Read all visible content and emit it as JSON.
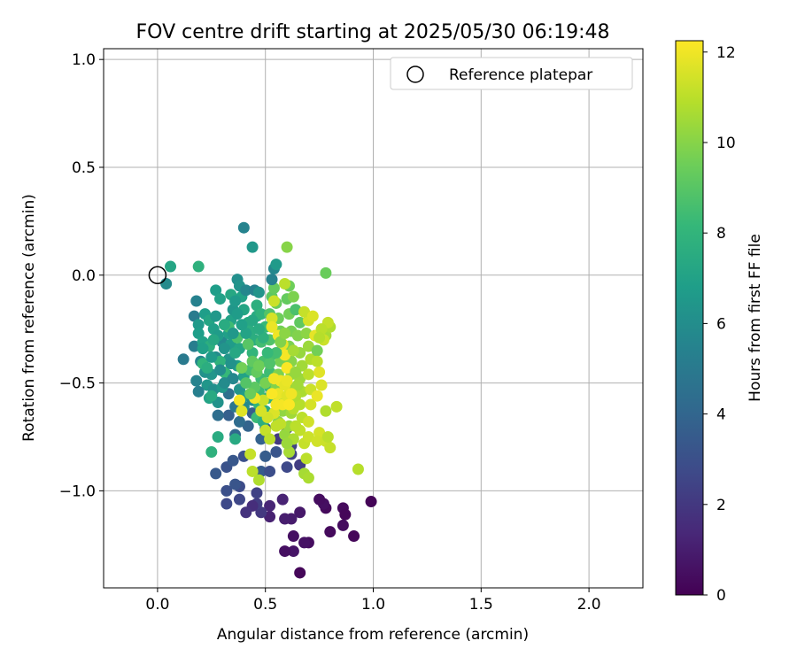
{
  "chart_data": {
    "type": "scatter",
    "title": "FOV centre drift starting at 2025/05/30 06:19:48",
    "xlabel": "Angular distance from reference (arcmin)",
    "ylabel": "Rotation from reference (arcmin)",
    "xlim": [
      -0.25,
      2.25
    ],
    "ylim": [
      -1.45,
      1.05
    ],
    "xticks": [
      0.0,
      0.5,
      1.0,
      1.5,
      2.0
    ],
    "xtick_labels": [
      "0.0",
      "0.5",
      "1.0",
      "1.5",
      "2.0"
    ],
    "yticks": [
      -1.0,
      -0.5,
      0.0,
      0.5,
      1.0
    ],
    "ytick_labels": [
      "−1.0",
      "−0.5",
      "0.0",
      "0.5",
      "1.0"
    ],
    "grid": true,
    "legend": {
      "placement": "top-right",
      "entries": [
        "Reference platepar"
      ]
    },
    "reference_point": {
      "x": 0.0,
      "y": 0.0,
      "label": "Reference platepar",
      "marker": "open-circle"
    },
    "colorbar": {
      "label": "Hours from first FF file",
      "range": [
        0,
        12.25
      ],
      "ticks": [
        0,
        2,
        4,
        6,
        8,
        10,
        12
      ],
      "tick_labels": [
        "0",
        "2",
        "4",
        "6",
        "8",
        "10",
        "12"
      ],
      "colormap": "viridis"
    },
    "colormap_stops": [
      "#440154",
      "#482878",
      "#3e4a89",
      "#31688e",
      "#26828e",
      "#1f9e89",
      "#35b779",
      "#6ece58",
      "#b5de2b",
      "#fde725"
    ],
    "points": [
      [
        0.99,
        -1.05,
        0.1
      ],
      [
        0.91,
        -1.21,
        0.2
      ],
      [
        0.86,
        -1.08,
        0.3
      ],
      [
        0.87,
        -1.11,
        0.2
      ],
      [
        0.86,
        -1.16,
        0.4
      ],
      [
        0.8,
        -1.19,
        0.3
      ],
      [
        0.78,
        -1.08,
        0.3
      ],
      [
        0.77,
        -1.06,
        0.5
      ],
      [
        0.75,
        -1.04,
        0.4
      ],
      [
        0.66,
        -1.38,
        0.2
      ],
      [
        0.7,
        -1.24,
        0.4
      ],
      [
        0.68,
        -1.24,
        0.6
      ],
      [
        0.63,
        -1.21,
        0.5
      ],
      [
        0.63,
        -1.28,
        0.7
      ],
      [
        0.59,
        -1.28,
        0.5
      ],
      [
        0.66,
        -1.1,
        0.8
      ],
      [
        0.62,
        -1.13,
        0.9
      ],
      [
        0.59,
        -1.13,
        1.0
      ],
      [
        0.52,
        -1.12,
        1.1
      ],
      [
        0.58,
        -1.04,
        1.2
      ],
      [
        0.52,
        -1.07,
        1.3
      ],
      [
        0.48,
        -1.1,
        2.0
      ],
      [
        0.46,
        -1.06,
        2.2
      ],
      [
        0.44,
        -1.07,
        1.6
      ],
      [
        0.46,
        -1.01,
        2.4
      ],
      [
        0.41,
        -1.1,
        1.8
      ],
      [
        0.38,
        -1.04,
        2.6
      ],
      [
        0.38,
        -0.98,
        2.8
      ],
      [
        0.32,
        -1.06,
        2.7
      ],
      [
        0.32,
        -1.0,
        3.0
      ],
      [
        0.36,
        -0.97,
        3.2
      ],
      [
        0.27,
        -0.92,
        3.4
      ],
      [
        0.32,
        -0.89,
        3.1
      ],
      [
        0.35,
        -0.86,
        3.3
      ],
      [
        0.4,
        -0.84,
        3.0
      ],
      [
        0.48,
        -0.91,
        3.5
      ],
      [
        0.5,
        -0.84,
        3.6
      ],
      [
        0.52,
        -0.91,
        2.9
      ],
      [
        0.55,
        -0.82,
        3.2
      ],
      [
        0.6,
        -0.89,
        2.7
      ],
      [
        0.62,
        -0.83,
        2.5
      ],
      [
        0.66,
        -0.88,
        2.2
      ],
      [
        0.62,
        -0.79,
        2.4
      ],
      [
        0.56,
        -0.76,
        2.1
      ],
      [
        0.6,
        -0.71,
        2.0
      ],
      [
        0.48,
        -0.76,
        3.8
      ],
      [
        0.5,
        -0.71,
        3.4
      ],
      [
        0.44,
        -0.64,
        3.6
      ],
      [
        0.42,
        -0.7,
        3.9
      ],
      [
        0.38,
        -0.68,
        4.3
      ],
      [
        0.36,
        -0.74,
        4.1
      ],
      [
        0.33,
        -0.65,
        3.7
      ],
      [
        0.28,
        -0.65,
        4.4
      ],
      [
        0.33,
        -0.55,
        4.5
      ],
      [
        0.36,
        -0.61,
        4.8
      ],
      [
        0.36,
        -0.76,
        7.4
      ],
      [
        0.28,
        -0.75,
        7.5
      ],
      [
        0.25,
        -0.82,
        7.8
      ],
      [
        0.24,
        -0.57,
        7.1
      ],
      [
        0.23,
        -0.51,
        6.4
      ],
      [
        0.19,
        -0.54,
        5.3
      ],
      [
        0.18,
        -0.49,
        5.5
      ],
      [
        0.2,
        -0.4,
        5.6
      ],
      [
        0.17,
        -0.33,
        5.2
      ],
      [
        0.12,
        -0.39,
        5.0
      ],
      [
        0.17,
        -0.19,
        5.1
      ],
      [
        0.18,
        -0.12,
        5.4
      ],
      [
        0.19,
        -0.23,
        6.6
      ],
      [
        0.19,
        -0.27,
        6.8
      ],
      [
        0.21,
        -0.31,
        7.0
      ],
      [
        0.22,
        -0.18,
        6.8
      ],
      [
        0.24,
        -0.21,
        7.2
      ],
      [
        0.26,
        -0.25,
        6.9
      ],
      [
        0.27,
        -0.07,
        6.8
      ],
      [
        0.29,
        -0.11,
        7.0
      ],
      [
        0.27,
        -0.19,
        6.5
      ],
      [
        0.3,
        -0.31,
        5.8
      ],
      [
        0.27,
        -0.38,
        5.9
      ],
      [
        0.25,
        -0.46,
        6.4
      ],
      [
        0.22,
        -0.45,
        6.2
      ],
      [
        0.21,
        -0.41,
        8.0
      ],
      [
        0.24,
        -0.33,
        7.7
      ],
      [
        0.26,
        -0.53,
        6.1
      ],
      [
        0.28,
        -0.59,
        6.2
      ],
      [
        0.3,
        -0.52,
        6.5
      ],
      [
        0.32,
        -0.46,
        6.0
      ],
      [
        0.33,
        -0.39,
        6.3
      ],
      [
        0.34,
        -0.32,
        6.7
      ],
      [
        0.33,
        -0.27,
        6.9
      ],
      [
        0.34,
        -0.21,
        7.0
      ],
      [
        0.35,
        -0.16,
        6.4
      ],
      [
        0.34,
        -0.09,
        7.3
      ],
      [
        0.37,
        -0.02,
        6.1
      ],
      [
        0.38,
        -0.05,
        6.3
      ],
      [
        0.39,
        -0.1,
        7.0
      ],
      [
        0.36,
        -0.12,
        6.6
      ],
      [
        0.4,
        -0.16,
        7.2
      ],
      [
        0.42,
        -0.22,
        7.4
      ],
      [
        0.41,
        -0.07,
        5.7
      ],
      [
        0.38,
        -0.34,
        7.2
      ],
      [
        0.37,
        -0.42,
        6.8
      ],
      [
        0.4,
        -0.47,
        7.0
      ],
      [
        0.38,
        -0.53,
        6.3
      ],
      [
        0.41,
        -0.56,
        6.7
      ],
      [
        0.4,
        -0.61,
        5.8
      ],
      [
        0.44,
        -0.58,
        5.9
      ],
      [
        0.43,
        -0.44,
        8.6
      ],
      [
        0.44,
        -0.36,
        8.0
      ],
      [
        0.45,
        -0.3,
        7.6
      ],
      [
        0.43,
        -0.26,
        7.6
      ],
      [
        0.46,
        -0.19,
        7.5
      ],
      [
        0.46,
        -0.14,
        7.7
      ],
      [
        0.45,
        -0.07,
        5.4
      ],
      [
        0.47,
        -0.08,
        6.3
      ],
      [
        0.48,
        -0.18,
        7.9
      ],
      [
        0.5,
        -0.24,
        8.2
      ],
      [
        0.48,
        -0.31,
        8.5
      ],
      [
        0.49,
        -0.4,
        8.6
      ],
      [
        0.48,
        -0.48,
        8.4
      ],
      [
        0.47,
        -0.54,
        8.3
      ],
      [
        0.47,
        -0.6,
        8.0
      ],
      [
        0.46,
        -0.66,
        8.3
      ],
      [
        0.49,
        -0.68,
        7.6
      ],
      [
        0.5,
        -0.63,
        7.4
      ],
      [
        0.51,
        -0.57,
        7.9
      ],
      [
        0.52,
        -0.52,
        8.1
      ],
      [
        0.52,
        -0.45,
        8.4
      ],
      [
        0.53,
        -0.37,
        8.6
      ],
      [
        0.52,
        -0.3,
        8.8
      ],
      [
        0.53,
        -0.24,
        9.0
      ],
      [
        0.52,
        -0.18,
        8.9
      ],
      [
        0.53,
        -0.1,
        9.1
      ],
      [
        0.54,
        -0.06,
        9.3
      ],
      [
        0.53,
        -0.02,
        5.4
      ],
      [
        0.54,
        0.03,
        5.7
      ],
      [
        0.55,
        -0.13,
        9.4
      ],
      [
        0.56,
        -0.2,
        9.5
      ],
      [
        0.57,
        -0.26,
        9.6
      ],
      [
        0.58,
        -0.33,
        9.4
      ],
      [
        0.57,
        -0.4,
        9.7
      ],
      [
        0.56,
        -0.46,
        9.8
      ],
      [
        0.55,
        -0.52,
        9.9
      ],
      [
        0.56,
        -0.58,
        10.0
      ],
      [
        0.58,
        -0.63,
        10.2
      ],
      [
        0.56,
        -0.68,
        10.1
      ],
      [
        0.59,
        -0.74,
        10.3
      ],
      [
        0.61,
        -0.7,
        10.4
      ],
      [
        0.62,
        -0.64,
        10.5
      ],
      [
        0.63,
        -0.58,
        10.6
      ],
      [
        0.61,
        -0.52,
        10.4
      ],
      [
        0.62,
        -0.46,
        10.2
      ],
      [
        0.62,
        -0.4,
        10.0
      ],
      [
        0.61,
        -0.33,
        9.8
      ],
      [
        0.62,
        -0.26,
        9.7
      ],
      [
        0.61,
        -0.18,
        9.6
      ],
      [
        0.6,
        -0.11,
        9.3
      ],
      [
        0.61,
        -0.05,
        9.5
      ],
      [
        0.63,
        -0.1,
        9.8
      ],
      [
        0.64,
        -0.16,
        8.7
      ],
      [
        0.66,
        -0.22,
        9.2
      ],
      [
        0.65,
        -0.28,
        9.9
      ],
      [
        0.66,
        -0.36,
        10.3
      ],
      [
        0.67,
        -0.42,
        10.5
      ],
      [
        0.66,
        -0.48,
        10.4
      ],
      [
        0.67,
        -0.54,
        10.7
      ],
      [
        0.66,
        -0.6,
        10.9
      ],
      [
        0.67,
        -0.66,
        11.0
      ],
      [
        0.66,
        -0.72,
        11.1
      ],
      [
        0.68,
        -0.78,
        11.2
      ],
      [
        0.69,
        -0.85,
        11.0
      ],
      [
        0.68,
        -0.92,
        10.6
      ],
      [
        0.7,
        -0.94,
        10.7
      ],
      [
        0.7,
        -0.75,
        11.3
      ],
      [
        0.7,
        -0.68,
        11.4
      ],
      [
        0.71,
        -0.6,
        11.5
      ],
      [
        0.71,
        -0.53,
        11.3
      ],
      [
        0.7,
        -0.46,
        11.0
      ],
      [
        0.71,
        -0.39,
        10.8
      ],
      [
        0.7,
        -0.33,
        10.4
      ],
      [
        0.69,
        -0.27,
        10.1
      ],
      [
        0.7,
        -0.21,
        11.5
      ],
      [
        0.68,
        -0.17,
        11.2
      ],
      [
        0.72,
        -0.19,
        11.6
      ],
      [
        0.73,
        -0.28,
        11.8
      ],
      [
        0.74,
        -0.35,
        9.6
      ],
      [
        0.74,
        -0.4,
        11.0
      ],
      [
        0.75,
        -0.45,
        11.7
      ],
      [
        0.76,
        -0.51,
        11.6
      ],
      [
        0.74,
        -0.56,
        11.9
      ],
      [
        0.75,
        -0.73,
        11.5
      ],
      [
        0.74,
        -0.77,
        11.4
      ],
      [
        0.78,
        -0.77,
        11.3
      ],
      [
        0.8,
        -0.8,
        11.2
      ],
      [
        0.79,
        -0.75,
        11.0
      ],
      [
        0.78,
        -0.63,
        10.8
      ],
      [
        0.83,
        -0.61,
        11.1
      ],
      [
        0.93,
        -0.9,
        10.9
      ],
      [
        0.78,
        -0.28,
        10.6
      ],
      [
        0.8,
        -0.24,
        10.8
      ],
      [
        0.79,
        -0.22,
        11.2
      ],
      [
        0.76,
        -0.25,
        11.0
      ],
      [
        0.77,
        -0.3,
        11.3
      ],
      [
        0.75,
        -0.29,
        10.9
      ],
      [
        0.78,
        0.01,
        9.4
      ],
      [
        0.6,
        0.13,
        10.0
      ],
      [
        0.59,
        -0.04,
        11.0
      ],
      [
        0.55,
        0.05,
        6.6
      ],
      [
        0.54,
        -0.12,
        11.3
      ],
      [
        0.53,
        -0.2,
        11.5
      ],
      [
        0.53,
        -0.24,
        11.9
      ],
      [
        0.56,
        -0.28,
        12.0
      ],
      [
        0.58,
        -0.32,
        11.8
      ],
      [
        0.59,
        -0.37,
        12.1
      ],
      [
        0.6,
        -0.43,
        12.2
      ],
      [
        0.57,
        -0.49,
        12.0
      ],
      [
        0.56,
        -0.55,
        11.9
      ],
      [
        0.58,
        -0.6,
        12.1
      ],
      [
        0.6,
        -0.56,
        11.7
      ],
      [
        0.59,
        -0.51,
        11.8
      ],
      [
        0.54,
        -0.64,
        11.6
      ],
      [
        0.51,
        -0.66,
        11.4
      ],
      [
        0.5,
        -0.72,
        11.2
      ],
      [
        0.52,
        -0.76,
        11.0
      ],
      [
        0.55,
        -0.7,
        11.1
      ],
      [
        0.49,
        -0.58,
        11.3
      ],
      [
        0.48,
        -0.63,
        11.5
      ],
      [
        0.43,
        -0.83,
        11.2
      ],
      [
        0.44,
        -0.91,
        11.0
      ],
      [
        0.47,
        -0.95,
        10.8
      ],
      [
        0.45,
        -0.57,
        12.0
      ],
      [
        0.38,
        -0.58,
        12.1
      ],
      [
        0.39,
        -0.63,
        11.7
      ],
      [
        0.4,
        0.22,
        5.5
      ],
      [
        0.44,
        0.13,
        6.5
      ],
      [
        0.06,
        0.04,
        7.2
      ],
      [
        0.04,
        -0.04,
        5.9
      ],
      [
        0.19,
        0.04,
        7.8
      ],
      [
        0.23,
        -0.43,
        7.6
      ],
      [
        0.25,
        -0.56,
        7.4
      ],
      [
        0.31,
        -0.45,
        8.2
      ],
      [
        0.29,
        -0.4,
        7.9
      ],
      [
        0.33,
        -0.24,
        8.4
      ],
      [
        0.36,
        -0.36,
        7.3
      ],
      [
        0.37,
        -0.29,
        8.7
      ],
      [
        0.42,
        -0.32,
        9.0
      ],
      [
        0.44,
        -0.4,
        9.2
      ],
      [
        0.46,
        -0.45,
        9.3
      ],
      [
        0.45,
        -0.52,
        9.1
      ],
      [
        0.43,
        -0.55,
        9.4
      ],
      [
        0.41,
        -0.5,
        8.9
      ],
      [
        0.39,
        -0.43,
        9.6
      ],
      [
        0.47,
        -0.42,
        9.5
      ],
      [
        0.5,
        -0.5,
        9.7
      ],
      [
        0.52,
        -0.41,
        8.8
      ],
      [
        0.55,
        -0.36,
        8.5
      ],
      [
        0.57,
        -0.31,
        9.9
      ],
      [
        0.59,
        -0.27,
        10.1
      ],
      [
        0.63,
        -0.35,
        10.6
      ],
      [
        0.64,
        -0.45,
        10.3
      ],
      [
        0.65,
        -0.51,
        10.5
      ],
      [
        0.64,
        -0.56,
        10.8
      ],
      [
        0.63,
        -0.62,
        10.9
      ],
      [
        0.64,
        -0.7,
        11.0
      ],
      [
        0.63,
        -0.76,
        10.7
      ],
      [
        0.61,
        -0.82,
        10.6
      ],
      [
        0.6,
        -0.78,
        10.4
      ],
      [
        0.57,
        -0.69,
        11.1
      ],
      [
        0.54,
        -0.48,
        12.0
      ],
      [
        0.53,
        -0.55,
        12.2
      ],
      [
        0.55,
        -0.6,
        12.1
      ],
      [
        0.61,
        -0.6,
        12.2
      ],
      [
        0.62,
        -0.55,
        12.0
      ],
      [
        0.6,
        -0.49,
        11.9
      ],
      [
        0.51,
        -0.36,
        8.2
      ],
      [
        0.49,
        -0.29,
        7.8
      ],
      [
        0.47,
        -0.25,
        7.5
      ],
      [
        0.44,
        -0.21,
        7.3
      ],
      [
        0.41,
        -0.27,
        7.1
      ],
      [
        0.39,
        -0.23,
        6.9
      ],
      [
        0.37,
        -0.18,
        6.7
      ],
      [
        0.35,
        -0.27,
        6.5
      ],
      [
        0.31,
        -0.34,
        6.3
      ],
      [
        0.29,
        -0.44,
        6.0
      ],
      [
        0.31,
        -0.5,
        5.9
      ],
      [
        0.35,
        -0.48,
        5.7
      ],
      [
        0.34,
        -0.41,
        6.2
      ],
      [
        0.31,
        -0.23,
        7.5
      ],
      [
        0.28,
        -0.28,
        6.7
      ],
      [
        0.25,
        -0.38,
        6.6
      ],
      [
        0.21,
        -0.34,
        6.9
      ],
      [
        0.26,
        -0.3,
        7.3
      ]
    ]
  }
}
